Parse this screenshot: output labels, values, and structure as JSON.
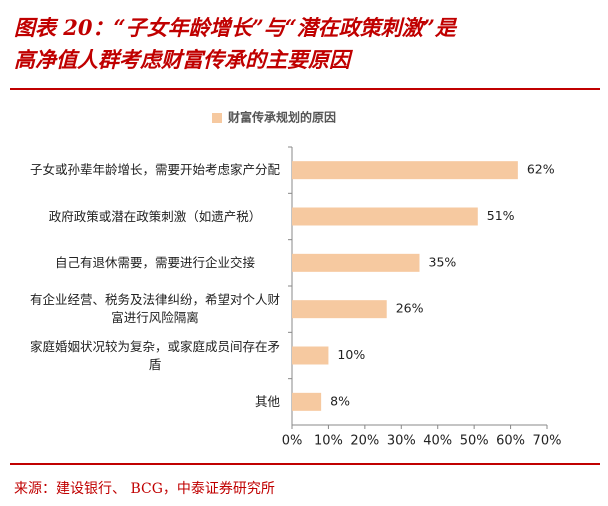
{
  "chart_data": {
    "type": "barh",
    "title": [
      "图表 20：“子女年龄增长”与“潜在政策刺激”是",
      "高净值人群考虑财富传承的主要原因"
    ],
    "categories": [
      "子女或孙辈年龄增长，需要开始考虑家产分配",
      "政府政策或潜在政策刺激（如遗产税）",
      "自己有退休需要，需要进行企业交接",
      "有企业经营、税务及法律纠纷，希望对个人财富进行风险隔离",
      "家庭婚姻状况较为复杂，或家庭成员间存在矛盾",
      "其他"
    ],
    "series": [
      {
        "name": "财富传承规划的原因",
        "color": "#f6c9a0",
        "values": [
          62,
          51,
          35,
          26,
          10,
          8
        ],
        "value_labels": [
          "62%",
          "51%",
          "35%",
          "26%",
          "10%",
          "8%"
        ]
      }
    ],
    "xlim": [
      0,
      70
    ],
    "xticks": [
      {
        "value": 0,
        "label": "0%"
      },
      {
        "value": 10,
        "label": "10%"
      },
      {
        "value": 20,
        "label": "20%"
      },
      {
        "value": 30,
        "label": "30%"
      },
      {
        "value": 40,
        "label": "40%"
      },
      {
        "value": 50,
        "label": "50%"
      },
      {
        "value": 60,
        "label": "60%"
      },
      {
        "value": 70,
        "label": "70%"
      }
    ],
    "source": "来源：建设银行、 BCG，中泰证券研究所"
  }
}
